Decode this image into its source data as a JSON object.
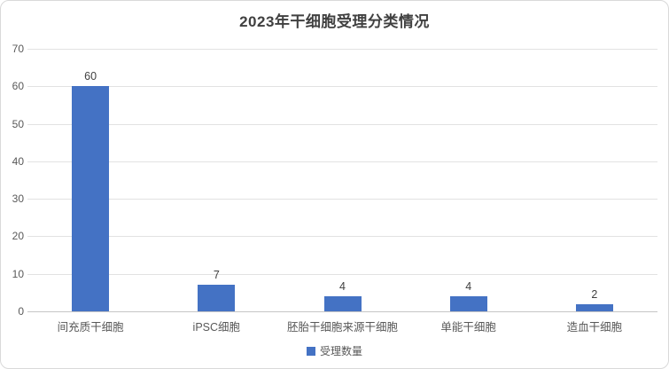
{
  "chart_data": {
    "type": "bar",
    "title": "2023年干细胞受理分类情况",
    "categories": [
      "间充质干细胞",
      "iPSC细胞",
      "胚胎干细胞来源干细胞",
      "单能干细胞",
      "造血干细胞"
    ],
    "series": [
      {
        "name": "受理数量",
        "values": [
          60,
          7,
          4,
          4,
          2
        ]
      }
    ],
    "xlabel": "",
    "ylabel": "",
    "ylim": [
      0,
      70
    ],
    "y_ticks": [
      0,
      10,
      20,
      30,
      40,
      50,
      60,
      70
    ],
    "grid": true,
    "legend_position": "bottom",
    "data_labels": true,
    "colors": {
      "bar": "#4472c4",
      "gridline": "#e2e2e2",
      "axis_line": "#c6c6c6",
      "title_text": "#404040",
      "tick_text": "#595959",
      "value_text": "#404040",
      "background": "#ffffff",
      "border": "#d9d9d9"
    }
  },
  "legend": {
    "label": "受理数量"
  }
}
